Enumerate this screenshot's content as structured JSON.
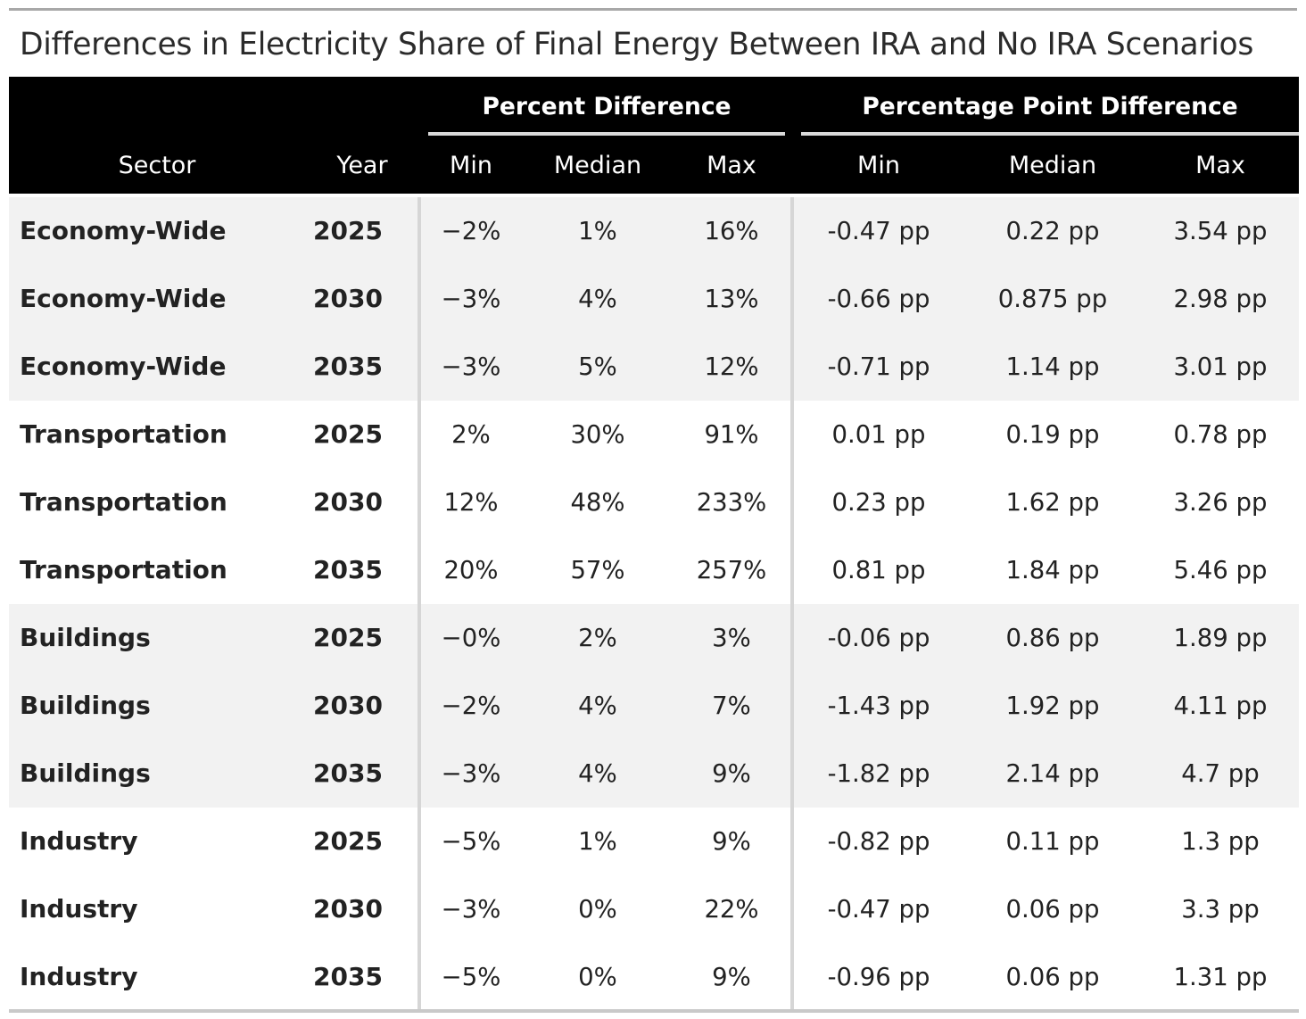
{
  "title": "Differences in Electricity Share of Final Energy Between IRA and No IRA Scenarios",
  "spanners": {
    "percent": "Percent Difference",
    "pp": "Percentage Point Difference"
  },
  "columns": {
    "sector": "Sector",
    "year": "Year",
    "pct_min": "Min",
    "pct_median": "Median",
    "pct_max": "Max",
    "pp_min": "Min",
    "pp_median": "Median",
    "pp_max": "Max"
  },
  "rows": [
    {
      "sector": "Economy-Wide",
      "year": "2025",
      "pct_min": "−2%",
      "pct_median": "1%",
      "pct_max": "16%",
      "pp_min": "-0.47 pp",
      "pp_median": "0.22 pp",
      "pp_max": "3.54 pp"
    },
    {
      "sector": "Economy-Wide",
      "year": "2030",
      "pct_min": "−3%",
      "pct_median": "4%",
      "pct_max": "13%",
      "pp_min": "-0.66 pp",
      "pp_median": "0.875 pp",
      "pp_max": "2.98 pp"
    },
    {
      "sector": "Economy-Wide",
      "year": "2035",
      "pct_min": "−3%",
      "pct_median": "5%",
      "pct_max": "12%",
      "pp_min": "-0.71 pp",
      "pp_median": "1.14 pp",
      "pp_max": "3.01 pp"
    },
    {
      "sector": "Transportation",
      "year": "2025",
      "pct_min": "2%",
      "pct_median": "30%",
      "pct_max": "91%",
      "pp_min": "0.01 pp",
      "pp_median": "0.19 pp",
      "pp_max": "0.78 pp"
    },
    {
      "sector": "Transportation",
      "year": "2030",
      "pct_min": "12%",
      "pct_median": "48%",
      "pct_max": "233%",
      "pp_min": "0.23 pp",
      "pp_median": "1.62 pp",
      "pp_max": "3.26 pp"
    },
    {
      "sector": "Transportation",
      "year": "2035",
      "pct_min": "20%",
      "pct_median": "57%",
      "pct_max": "257%",
      "pp_min": "0.81 pp",
      "pp_median": "1.84 pp",
      "pp_max": "5.46 pp"
    },
    {
      "sector": "Buildings",
      "year": "2025",
      "pct_min": "−0%",
      "pct_median": "2%",
      "pct_max": "3%",
      "pp_min": "-0.06 pp",
      "pp_median": "0.86 pp",
      "pp_max": "1.89 pp"
    },
    {
      "sector": "Buildings",
      "year": "2030",
      "pct_min": "−2%",
      "pct_median": "4%",
      "pct_max": "7%",
      "pp_min": "-1.43 pp",
      "pp_median": "1.92 pp",
      "pp_max": "4.11 pp"
    },
    {
      "sector": "Buildings",
      "year": "2035",
      "pct_min": "−3%",
      "pct_median": "4%",
      "pct_max": "9%",
      "pp_min": "-1.82 pp",
      "pp_median": "2.14 pp",
      "pp_max": "4.7 pp"
    },
    {
      "sector": "Industry",
      "year": "2025",
      "pct_min": "−5%",
      "pct_median": "1%",
      "pct_max": "9%",
      "pp_min": "-0.82 pp",
      "pp_median": "0.11 pp",
      "pp_max": "1.3 pp"
    },
    {
      "sector": "Industry",
      "year": "2030",
      "pct_min": "−3%",
      "pct_median": "0%",
      "pct_max": "22%",
      "pp_min": "-0.47 pp",
      "pp_median": "0.06 pp",
      "pp_max": "3.3 pp"
    },
    {
      "sector": "Industry",
      "year": "2035",
      "pct_min": "−5%",
      "pct_median": "0%",
      "pct_max": "9%",
      "pp_min": "-0.96 pp",
      "pp_median": "0.06 pp",
      "pp_max": "1.31 pp"
    }
  ],
  "colors": {
    "header_bg": "#000000",
    "header_text": "#ffffff",
    "band_shade": "#f2f2f2",
    "band_plain": "#ffffff",
    "divider": "#d6d6d6"
  }
}
